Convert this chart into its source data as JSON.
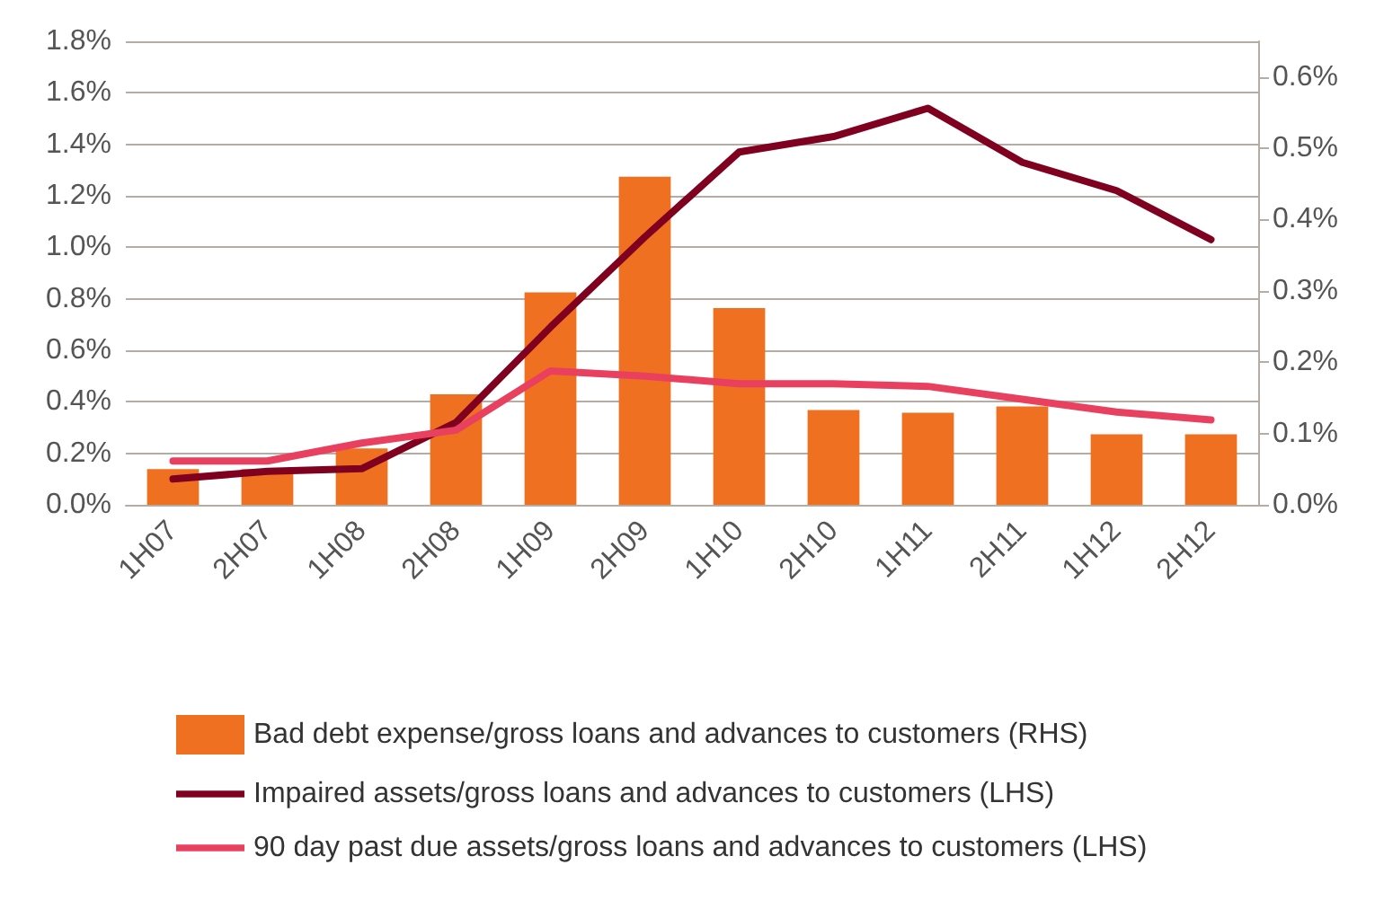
{
  "chart_data": {
    "type": "bar",
    "categories": [
      "1H07",
      "2H07",
      "1H08",
      "2H08",
      "1H09",
      "2H09",
      "1H10",
      "2H10",
      "1H11",
      "2H11",
      "1H12",
      "2H12"
    ],
    "series": [
      {
        "name": "Bad debt expense/gross loans and advances to customers (RHS)",
        "axis": "y2",
        "color": "#f07022",
        "values": [
          0.05,
          0.05,
          0.079,
          0.155,
          0.298,
          0.46,
          0.276,
          0.133,
          0.129,
          0.138,
          0.099,
          0.099
        ]
      },
      {
        "name": "Impaired assets/gross loans and advances to customers (LHS)",
        "type": "line",
        "color": "#800020",
        "values": [
          0.1,
          0.13,
          0.14,
          0.32,
          0.69,
          1.04,
          1.37,
          1.43,
          1.54,
          1.33,
          1.22,
          1.03
        ]
      },
      {
        "name": "90 day past due assets/gross loans and advances to customers (LHS)",
        "type": "line",
        "color": "#e8405e",
        "values": [
          0.17,
          0.17,
          0.24,
          0.29,
          0.52,
          0.5,
          0.47,
          0.47,
          0.46,
          0.41,
          0.36,
          0.33
        ]
      }
    ],
    "ylim": [
      0,
      1.8
    ],
    "yticks": [
      {
        "value": 0,
        "label": "0.0%"
      },
      {
        "value": 0.2,
        "label": "0.2%"
      },
      {
        "value": 0.4,
        "label": "0.4%"
      },
      {
        "value": 0.6,
        "label": "0.6%"
      },
      {
        "value": 0.8,
        "label": "0.8%"
      },
      {
        "value": 1.0,
        "label": "1.0%"
      },
      {
        "value": 1.2,
        "label": "1.2%"
      },
      {
        "value": 1.4,
        "label": "1.4%"
      },
      {
        "value": 1.6,
        "label": "1.6%"
      },
      {
        "value": 1.8,
        "label": "1.8%"
      }
    ],
    "y2lim": [
      0,
      0.65
    ],
    "y2ticks": [
      {
        "value": 0,
        "label": "0.0%"
      },
      {
        "value": 0.1,
        "label": "0.1%"
      },
      {
        "value": 0.2,
        "label": "0.2%"
      },
      {
        "value": 0.3,
        "label": "0.3%"
      },
      {
        "value": 0.4,
        "label": "0.4%"
      },
      {
        "value": 0.5,
        "label": "0.5%"
      },
      {
        "value": 0.6,
        "label": "0.6%"
      }
    ],
    "grid": "y",
    "legend": "bottom",
    "marker": "none",
    "line_style": "solid"
  }
}
